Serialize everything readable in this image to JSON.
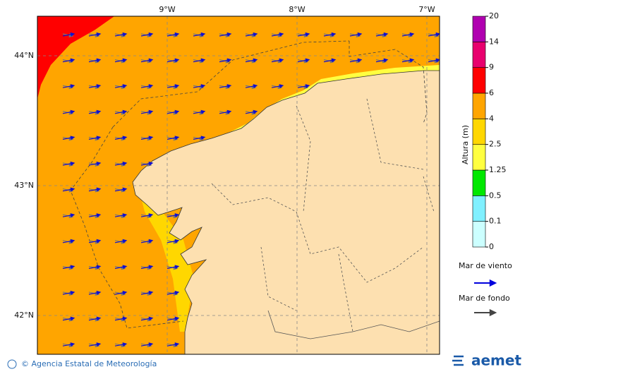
{
  "map": {
    "lon_labels": [
      "9°W",
      "8°W",
      "7°W"
    ],
    "lat_labels": [
      "44°N",
      "43°N",
      "42°N"
    ]
  },
  "colorbar": {
    "label": "Altura (m)",
    "ticks": [
      0,
      0.1,
      0.5,
      1.25,
      2.5,
      4,
      6,
      9,
      14,
      20
    ],
    "colors": [
      "#ccffff",
      "#80f0ff",
      "#00e800",
      "#ffff40",
      "#ffd700",
      "#ffa500",
      "#ff0000",
      "#e8006e",
      "#b000b0"
    ]
  },
  "legend": {
    "items": [
      {
        "label": "Mar de viento",
        "color": "#0000dd"
      },
      {
        "label": "Mar de fondo",
        "color": "#444444"
      }
    ]
  },
  "footer": {
    "credit": "© Agencia Estatal de Meteorología",
    "logo": "aemet"
  }
}
